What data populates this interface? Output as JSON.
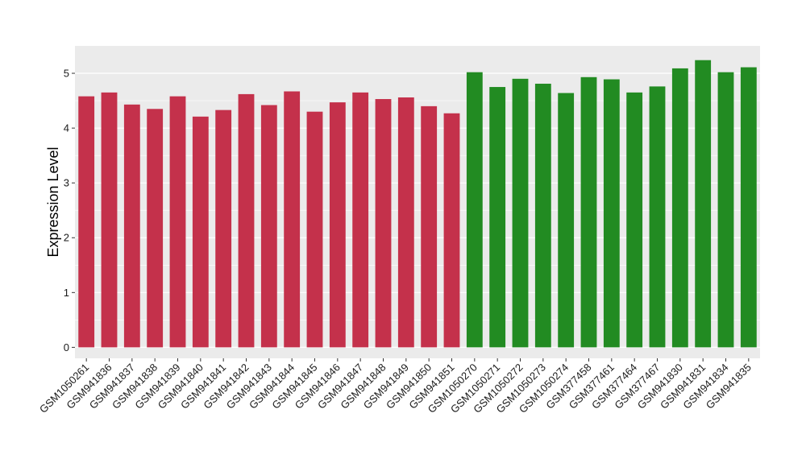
{
  "chart_data": {
    "type": "bar",
    "title": "",
    "xlabel": "",
    "ylabel": "Expression Level",
    "ylim": [
      -0.2,
      5.5
    ],
    "yticks": [
      0,
      1,
      2,
      3,
      4,
      5
    ],
    "grid": true,
    "legend": "none",
    "colors": {
      "group1": "#c4314b",
      "group2": "#228b22",
      "panel_bg": "#ebebeb",
      "grid": "#ffffff"
    },
    "categories": [
      "GSM1050261",
      "GSM941836",
      "GSM941837",
      "GSM941838",
      "GSM941839",
      "GSM941840",
      "GSM941841",
      "GSM941842",
      "GSM941843",
      "GSM941844",
      "GSM941845",
      "GSM941846",
      "GSM941847",
      "GSM941848",
      "GSM941849",
      "GSM941850",
      "GSM941851",
      "GSM1050270",
      "GSM1050271",
      "GSM1050272",
      "GSM1050273",
      "GSM1050274",
      "GSM377458",
      "GSM377461",
      "GSM377464",
      "GSM377467",
      "GSM941830",
      "GSM941831",
      "GSM941834",
      "GSM941835"
    ],
    "values": [
      4.58,
      4.65,
      4.43,
      4.35,
      4.58,
      4.21,
      4.33,
      4.62,
      4.42,
      4.67,
      4.3,
      4.47,
      4.65,
      4.53,
      4.56,
      4.4,
      4.27,
      5.02,
      4.75,
      4.9,
      4.81,
      4.64,
      4.93,
      4.89,
      4.65,
      4.76,
      5.09,
      5.24,
      5.02,
      5.11
    ],
    "groups": [
      "group1",
      "group1",
      "group1",
      "group1",
      "group1",
      "group1",
      "group1",
      "group1",
      "group1",
      "group1",
      "group1",
      "group1",
      "group1",
      "group1",
      "group1",
      "group1",
      "group1",
      "group2",
      "group2",
      "group2",
      "group2",
      "group2",
      "group2",
      "group2",
      "group2",
      "group2",
      "group2",
      "group2",
      "group2",
      "group2"
    ]
  }
}
